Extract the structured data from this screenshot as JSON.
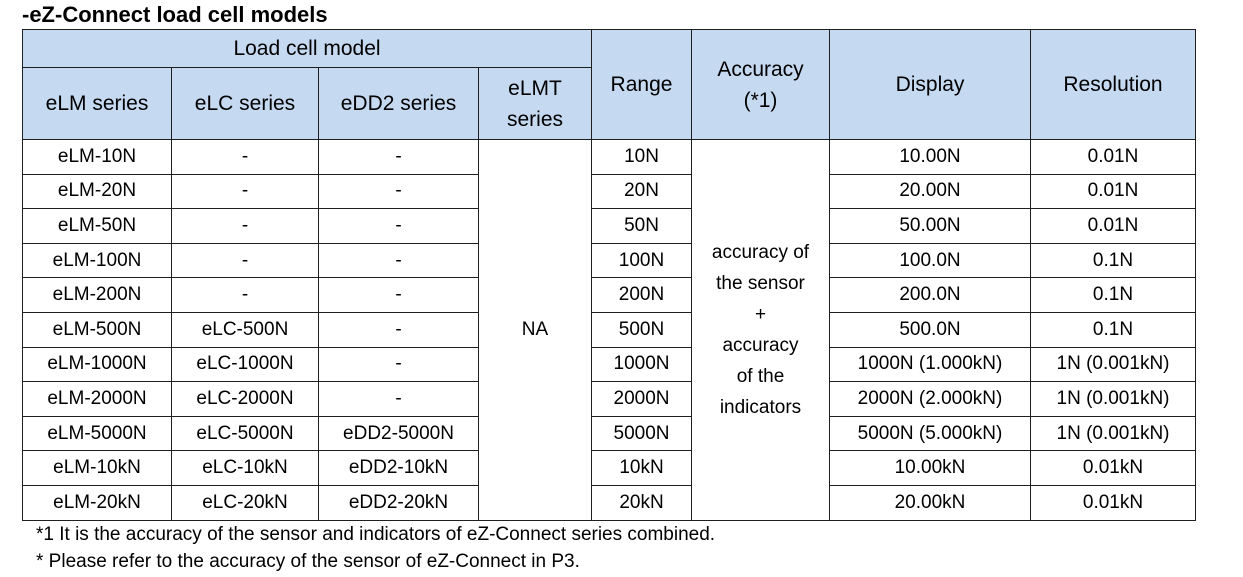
{
  "title": "-eZ-Connect load cell models",
  "table": {
    "header": {
      "group_label": "Load cell model",
      "series_columns": [
        "eLM series",
        "eLC series",
        "eDD2 series"
      ],
      "elmt_line1": "eLMT",
      "elmt_line2": "series",
      "range": "Range",
      "accuracy_line1": "Accuracy",
      "accuracy_line2": "(*1)",
      "display": "Display",
      "resolution": "Resolution"
    },
    "rows": [
      {
        "elm": "eLM-10N",
        "elc": "-",
        "edd2": "-",
        "range": "10N",
        "display": "10.00N",
        "resolution": "0.01N"
      },
      {
        "elm": "eLM-20N",
        "elc": "-",
        "edd2": "-",
        "range": "20N",
        "display": "20.00N",
        "resolution": "0.01N"
      },
      {
        "elm": "eLM-50N",
        "elc": "-",
        "edd2": "-",
        "range": "50N",
        "display": "50.00N",
        "resolution": "0.01N"
      },
      {
        "elm": "eLM-100N",
        "elc": "-",
        "edd2": "-",
        "range": "100N",
        "display": "100.0N",
        "resolution": "0.1N"
      },
      {
        "elm": "eLM-200N",
        "elc": "-",
        "edd2": "-",
        "range": "200N",
        "display": "200.0N",
        "resolution": "0.1N"
      },
      {
        "elm": "eLM-500N",
        "elc": "eLC-500N",
        "edd2": "-",
        "range": "500N",
        "display": "500.0N",
        "resolution": "0.1N"
      },
      {
        "elm": "eLM-1000N",
        "elc": "eLC-1000N",
        "edd2": "-",
        "range": "1000N",
        "display": "1000N (1.000kN)",
        "resolution": "1N (0.001kN)"
      },
      {
        "elm": "eLM-2000N",
        "elc": "eLC-2000N",
        "edd2": "-",
        "range": "2000N",
        "display": "2000N (2.000kN)",
        "resolution": "1N (0.001kN)"
      },
      {
        "elm": "eLM-5000N",
        "elc": "eLC-5000N",
        "edd2": "eDD2-5000N",
        "range": "5000N",
        "display": "5000N (5.000kN)",
        "resolution": "1N (0.001kN)"
      },
      {
        "elm": "eLM-10kN",
        "elc": "eLC-10kN",
        "edd2": "eDD2-10kN",
        "range": "10kN",
        "display": "10.00kN",
        "resolution": "0.01kN"
      },
      {
        "elm": "eLM-20kN",
        "elc": "eLC-20kN",
        "edd2": "eDD2-20kN",
        "range": "20kN",
        "display": "20.00kN",
        "resolution": "0.01kN"
      }
    ],
    "elmt_value": "NA",
    "accuracy_lines": [
      "accuracy of",
      "the sensor",
      "+",
      "accuracy",
      "of the",
      "indicators"
    ]
  },
  "notes": [
    "*1 It is the accuracy of the sensor and indicators of eZ-Connect series combined.",
    "* Please refer to the accuracy of the sensor of eZ-Connect in P3."
  ]
}
